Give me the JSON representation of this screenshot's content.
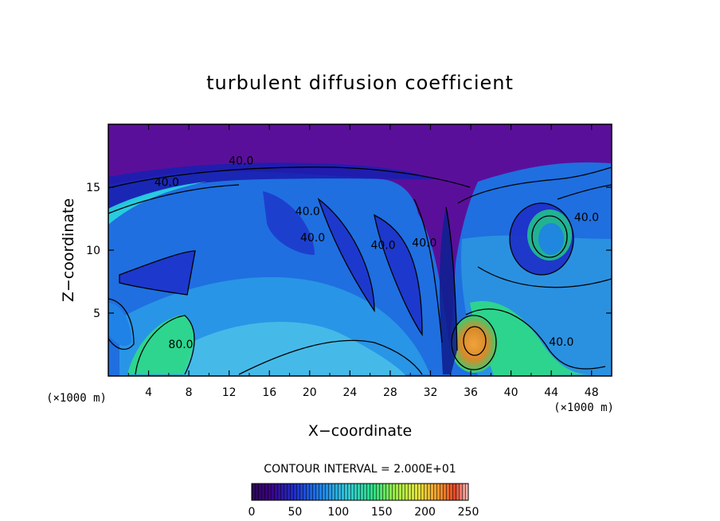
{
  "chart_data": {
    "type": "heatmap",
    "title": "turbulent diffusion coefficient",
    "xlabel": "X−coordinate",
    "ylabel": "Z−coordinate",
    "x_unit": "(×1000 m)",
    "z_unit": "(×1000 m)",
    "xlim": [
      0,
      50
    ],
    "ylim": [
      0,
      20
    ],
    "x_ticks": [
      4,
      8,
      12,
      16,
      20,
      24,
      28,
      32,
      36,
      40,
      44,
      48
    ],
    "y_ticks": [
      5,
      10,
      15
    ],
    "contour_interval_text": "CONTOUR INTERVAL = 2.000E+01",
    "colorbar": {
      "min": 0,
      "max": 250,
      "ticks": [
        0,
        50,
        100,
        150,
        200,
        250
      ]
    },
    "contour_labels": [
      {
        "text": "40.0",
        "x": 13.2,
        "z": 16.8
      },
      {
        "text": "40.0",
        "x": 5.8,
        "z": 15.1
      },
      {
        "text": "40.0",
        "x": 19.8,
        "z": 12.8
      },
      {
        "text": "40.0",
        "x": 20.3,
        "z": 10.7
      },
      {
        "text": "40.0",
        "x": 27.3,
        "z": 10.1
      },
      {
        "text": "40.0",
        "x": 31.4,
        "z": 10.3
      },
      {
        "text": "80.0",
        "x": 7.2,
        "z": 2.2
      },
      {
        "text": "40.0",
        "x": 45.0,
        "z": 2.4
      },
      {
        "text": "40.0",
        "x": 47.5,
        "z": 12.3
      }
    ]
  }
}
